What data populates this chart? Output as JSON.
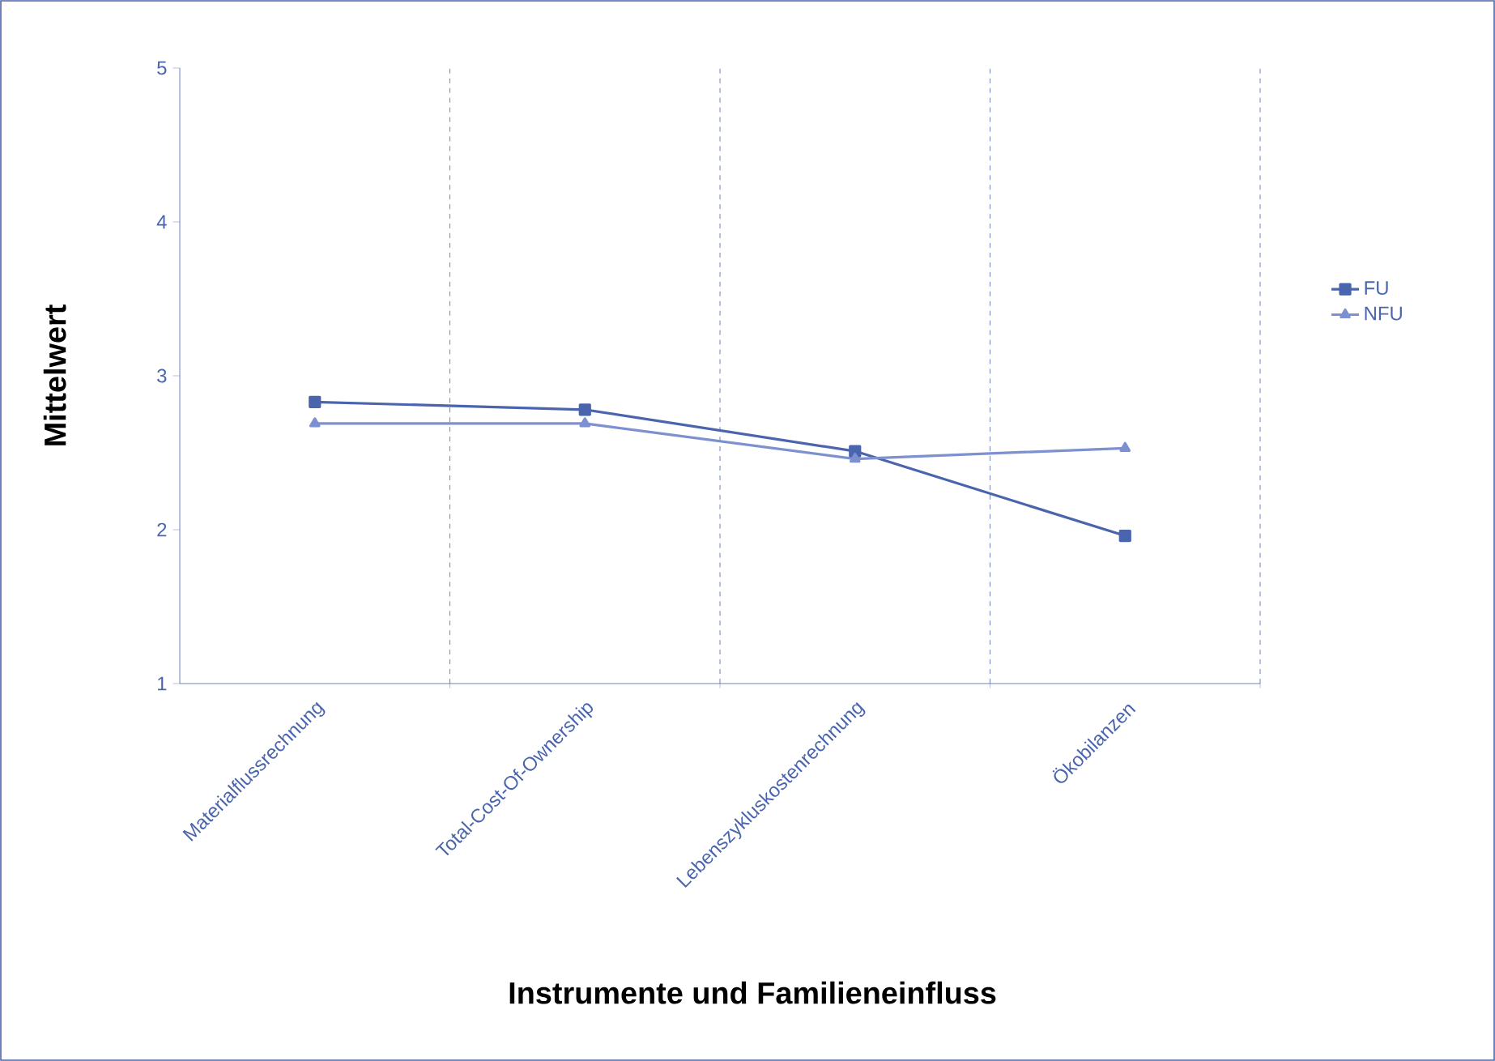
{
  "chart_data": {
    "type": "line",
    "xlabel": "Instrumente und Familieneinfluss",
    "ylabel": "Mittelwert",
    "categories": [
      "Materialflussrechnung",
      "Total-Cost-Of-Ownership",
      "Lebenszykluskostenrechnung",
      "Ökobilanzen"
    ],
    "series": [
      {
        "name": "FU",
        "color": "#4a65ad",
        "values": [
          2.83,
          2.78,
          2.51,
          1.96
        ],
        "marker": "square"
      },
      {
        "name": "NFU",
        "color": "#7d90cf",
        "values": [
          2.69,
          2.69,
          2.46,
          2.53
        ],
        "marker": "triangle"
      }
    ],
    "ylim": [
      1,
      5
    ],
    "yticks": [
      1,
      2,
      3,
      4,
      5
    ],
    "grid": "x",
    "legend": "right",
    "line_style": "solid"
  }
}
